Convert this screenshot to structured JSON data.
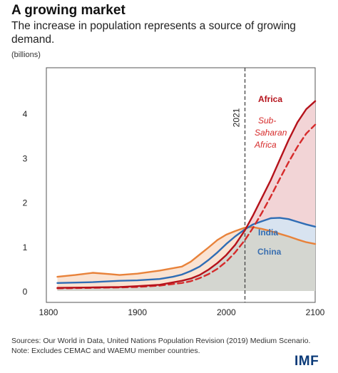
{
  "header": {
    "title": "A growing market",
    "subtitle": "The increase in population represents a source of growing demand.",
    "units": "(billions)"
  },
  "footer": {
    "sources": "Sources: Our World in Data, United Nations Population Revision (2019) Medium Scenario.",
    "note": "Note: Excludes CEMAC and WAEMU member countries.",
    "logo": "IMF"
  },
  "chart_data": {
    "type": "line",
    "xlim": [
      1800,
      2100
    ],
    "ylim": [
      0,
      4.5
    ],
    "x_ticks": [
      1800,
      1900,
      2000,
      2100
    ],
    "y_ticks": [
      0,
      1,
      2,
      3,
      4
    ],
    "grid": false,
    "marker": {
      "x": 2021,
      "label": "2021"
    },
    "series": [
      {
        "name": "Africa",
        "color": "#b5121b",
        "dashed": false,
        "fill": "#f2d4d6",
        "points": [
          [
            1810,
            0.07
          ],
          [
            1850,
            0.08
          ],
          [
            1880,
            0.09
          ],
          [
            1900,
            0.11
          ],
          [
            1925,
            0.14
          ],
          [
            1950,
            0.23
          ],
          [
            1960,
            0.28
          ],
          [
            1970,
            0.36
          ],
          [
            1980,
            0.48
          ],
          [
            1990,
            0.63
          ],
          [
            2000,
            0.81
          ],
          [
            2010,
            1.04
          ],
          [
            2021,
            1.37
          ],
          [
            2030,
            1.7
          ],
          [
            2040,
            2.1
          ],
          [
            2050,
            2.5
          ],
          [
            2060,
            2.95
          ],
          [
            2070,
            3.4
          ],
          [
            2080,
            3.8
          ],
          [
            2090,
            4.1
          ],
          [
            2100,
            4.28
          ]
        ]
      },
      {
        "name": "Sub-Saharan Africa",
        "color": "#d62b2b",
        "dashed": true,
        "fill": null,
        "points": [
          [
            1810,
            0.06
          ],
          [
            1850,
            0.07
          ],
          [
            1880,
            0.08
          ],
          [
            1900,
            0.09
          ],
          [
            1925,
            0.12
          ],
          [
            1950,
            0.18
          ],
          [
            1960,
            0.22
          ],
          [
            1970,
            0.29
          ],
          [
            1980,
            0.38
          ],
          [
            1990,
            0.5
          ],
          [
            2000,
            0.66
          ],
          [
            2010,
            0.87
          ],
          [
            2021,
            1.15
          ],
          [
            2030,
            1.42
          ],
          [
            2040,
            1.76
          ],
          [
            2050,
            2.13
          ],
          [
            2060,
            2.52
          ],
          [
            2070,
            2.9
          ],
          [
            2080,
            3.25
          ],
          [
            2090,
            3.55
          ],
          [
            2100,
            3.75
          ]
        ]
      },
      {
        "name": "India",
        "color": "#2f6db5",
        "dashed": false,
        "fill": "#d8e3f0",
        "points": [
          [
            1810,
            0.18
          ],
          [
            1850,
            0.2
          ],
          [
            1880,
            0.23
          ],
          [
            1900,
            0.24
          ],
          [
            1925,
            0.27
          ],
          [
            1940,
            0.32
          ],
          [
            1950,
            0.37
          ],
          [
            1960,
            0.45
          ],
          [
            1970,
            0.55
          ],
          [
            1980,
            0.7
          ],
          [
            1990,
            0.87
          ],
          [
            2000,
            1.06
          ],
          [
            2010,
            1.23
          ],
          [
            2021,
            1.39
          ],
          [
            2030,
            1.5
          ],
          [
            2040,
            1.57
          ],
          [
            2050,
            1.64
          ],
          [
            2060,
            1.65
          ],
          [
            2070,
            1.62
          ],
          [
            2080,
            1.56
          ],
          [
            2090,
            1.5
          ],
          [
            2100,
            1.45
          ]
        ]
      },
      {
        "name": "China",
        "color": "#e8823a",
        "dashed": false,
        "fill": "#fae3d2",
        "points": [
          [
            1810,
            0.32
          ],
          [
            1830,
            0.36
          ],
          [
            1850,
            0.41
          ],
          [
            1870,
            0.38
          ],
          [
            1880,
            0.36
          ],
          [
            1900,
            0.39
          ],
          [
            1925,
            0.46
          ],
          [
            1950,
            0.55
          ],
          [
            1960,
            0.66
          ],
          [
            1970,
            0.82
          ],
          [
            1980,
            0.98
          ],
          [
            1990,
            1.15
          ],
          [
            2000,
            1.27
          ],
          [
            2010,
            1.35
          ],
          [
            2021,
            1.43
          ],
          [
            2030,
            1.44
          ],
          [
            2040,
            1.4
          ],
          [
            2050,
            1.35
          ],
          [
            2060,
            1.29
          ],
          [
            2070,
            1.23
          ],
          [
            2080,
            1.16
          ],
          [
            2090,
            1.1
          ],
          [
            2100,
            1.06
          ]
        ]
      }
    ],
    "labels": {
      "Africa": "Africa",
      "Sub-Saharan Africa": [
        "Sub-",
        "Saharan",
        "Africa"
      ],
      "India": "India",
      "China": "China"
    }
  }
}
